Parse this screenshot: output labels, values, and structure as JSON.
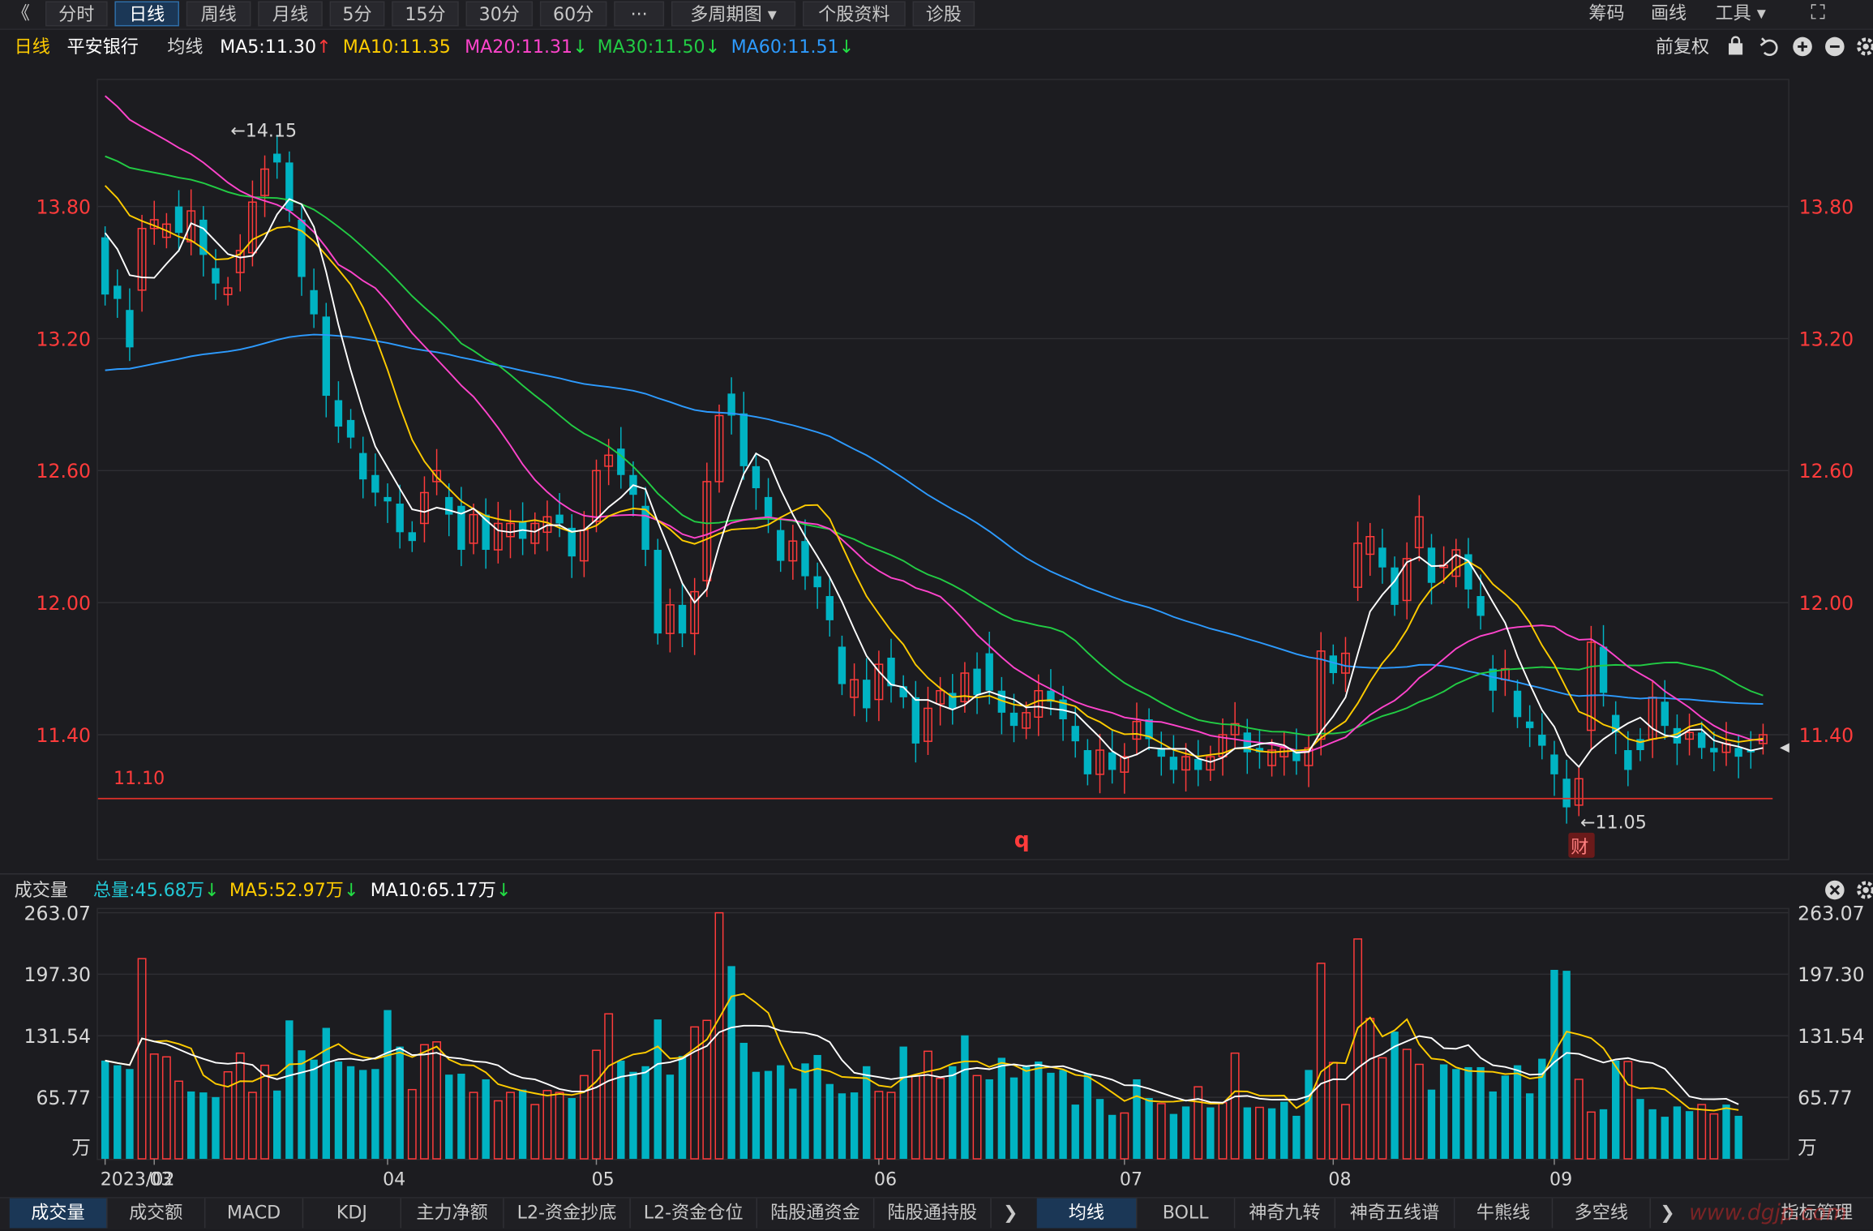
{
  "toolbar": {
    "back": "《",
    "tabs": [
      "分时",
      "日线",
      "周线",
      "月线",
      "5分",
      "15分",
      "30分",
      "60分",
      "···",
      "多周期图 ▾",
      "个股资料",
      "诊股"
    ],
    "active_tab": "日线",
    "right": [
      "筹码",
      "画线",
      "工具 ▾"
    ],
    "fullscreen_icon": "⛶"
  },
  "legend": {
    "period": "日线",
    "stock_name": "平安银行",
    "ma_label": "均线",
    "ma_items": [
      {
        "text": "MA5:11.30",
        "arrow": "↑",
        "color": "#ffffff",
        "arrow_color": "#ff3b3b"
      },
      {
        "text": "MA10:11.35",
        "arrow": "",
        "color": "#ffcc00",
        "arrow_color": ""
      },
      {
        "text": "MA20:11.31",
        "arrow": "↓",
        "color": "#ff44cc",
        "arrow_color": "#22dd44"
      },
      {
        "text": "MA30:11.50",
        "arrow": "↓",
        "color": "#22cc44",
        "arrow_color": "#22dd44"
      },
      {
        "text": "MA60:11.51",
        "arrow": "↓",
        "color": "#2d9bff",
        "arrow_color": "#22dd44"
      }
    ],
    "adjust": "前复权",
    "icons": [
      "lock-icon",
      "undo-icon",
      "plus-icon",
      "minus-icon",
      "gear-icon"
    ]
  },
  "colors": {
    "up": "#ff3b3b",
    "down": "#00b3c3",
    "ma5": "#ffffff",
    "ma10": "#ffcc00",
    "ma20": "#ff44cc",
    "ma30": "#22cc44",
    "ma60": "#2d9bff",
    "grid": "#2e2e33",
    "support": "#e0302a"
  },
  "volume_legend": {
    "title": "成交量",
    "total": "总量:45.68万",
    "total_arrow": "↓",
    "ma5": "MA5:52.97万",
    "ma5_arrow": "↓",
    "ma10": "MA10:65.17万",
    "ma10_arrow": "↓"
  },
  "chart_data": {
    "type": "candlestick",
    "price_axis": {
      "ticks": [
        "13.80",
        "13.20",
        "12.60",
        "12.00",
        "11.40"
      ],
      "min": 10.83,
      "max": 14.38
    },
    "volume_axis": {
      "ticks": [
        "263.07",
        "197.30",
        "131.54",
        "65.77"
      ],
      "unit": "万",
      "max": 263.07
    },
    "x_axis_labels": [
      "2023/02",
      "03",
      "04",
      "05",
      "06",
      "07",
      "08",
      "09"
    ],
    "annotations": {
      "high": "←14.15",
      "low": "←11.05",
      "support_level": "11.10",
      "marker_q": "q",
      "marker_cai": "财"
    },
    "support_price": 11.11,
    "candles": [
      [
        13.66,
        13.4
      ],
      [
        13.44,
        13.38
      ],
      [
        13.33,
        13.16
      ],
      [
        13.42,
        13.7
      ],
      [
        13.7,
        13.74
      ],
      [
        13.66,
        13.72
      ],
      [
        13.8,
        13.68
      ],
      [
        13.64,
        13.78
      ],
      [
        13.74,
        13.58
      ],
      [
        13.52,
        13.45
      ],
      [
        13.4,
        13.43
      ],
      [
        13.5,
        13.6
      ],
      [
        13.59,
        13.82
      ],
      [
        13.85,
        13.97
      ],
      [
        14.04,
        14.0
      ],
      [
        14.0,
        13.78
      ],
      [
        13.74,
        13.48
      ],
      [
        13.42,
        13.31
      ],
      [
        13.3,
        12.94
      ],
      [
        12.92,
        12.8
      ],
      [
        12.83,
        12.75
      ],
      [
        12.68,
        12.56
      ],
      [
        12.58,
        12.5
      ],
      [
        12.48,
        12.46
      ],
      [
        12.45,
        12.32
      ],
      [
        12.32,
        12.28
      ],
      [
        12.36,
        12.5
      ],
      [
        12.55,
        12.6
      ],
      [
        12.48,
        12.4
      ],
      [
        12.44,
        12.24
      ],
      [
        12.27,
        12.4
      ],
      [
        12.4,
        12.24
      ],
      [
        12.24,
        12.36
      ],
      [
        12.3,
        12.36
      ],
      [
        12.37,
        12.29
      ],
      [
        12.27,
        12.36
      ],
      [
        12.32,
        12.39
      ],
      [
        12.4,
        12.36
      ],
      [
        12.34,
        12.21
      ],
      [
        12.19,
        12.33
      ],
      [
        12.37,
        12.6
      ],
      [
        12.62,
        12.67
      ],
      [
        12.7,
        12.58
      ],
      [
        12.58,
        12.49
      ],
      [
        12.44,
        12.24
      ],
      [
        12.24,
        11.86
      ],
      [
        11.86,
        11.99
      ],
      [
        11.99,
        11.86
      ],
      [
        11.86,
        12.05
      ],
      [
        12.1,
        12.55
      ],
      [
        12.55,
        12.85
      ],
      [
        12.95,
        12.85
      ],
      [
        12.86,
        12.62
      ],
      [
        12.62,
        12.52
      ],
      [
        12.48,
        12.39
      ],
      [
        12.33,
        12.19
      ],
      [
        12.19,
        12.28
      ],
      [
        12.28,
        12.12
      ],
      [
        12.12,
        12.07
      ],
      [
        12.03,
        11.92
      ],
      [
        11.8,
        11.63
      ],
      [
        11.57,
        11.65
      ],
      [
        11.65,
        11.52
      ],
      [
        11.56,
        11.72
      ],
      [
        11.75,
        11.62
      ],
      [
        11.62,
        11.57
      ],
      [
        11.57,
        11.36
      ],
      [
        11.37,
        11.52
      ],
      [
        11.54,
        11.6
      ],
      [
        11.59,
        11.52
      ],
      [
        11.55,
        11.68
      ],
      [
        11.7,
        11.58
      ],
      [
        11.77,
        11.6
      ],
      [
        11.6,
        11.5
      ],
      [
        11.5,
        11.44
      ],
      [
        11.43,
        11.5
      ],
      [
        11.48,
        11.6
      ],
      [
        11.6,
        11.55
      ],
      [
        11.56,
        11.47
      ],
      [
        11.44,
        11.37
      ],
      [
        11.33,
        11.22
      ],
      [
        11.22,
        11.33
      ],
      [
        11.32,
        11.24
      ],
      [
        11.23,
        11.3
      ],
      [
        11.38,
        11.46
      ],
      [
        11.47,
        11.38
      ],
      [
        11.34,
        11.3
      ],
      [
        11.3,
        11.24
      ],
      [
        11.24,
        11.3
      ],
      [
        11.29,
        11.24
      ],
      [
        11.24,
        11.3
      ],
      [
        11.3,
        11.4
      ],
      [
        11.4,
        11.45
      ],
      [
        11.41,
        11.32
      ],
      [
        11.34,
        11.32
      ],
      [
        11.26,
        11.33
      ],
      [
        11.3,
        11.34
      ],
      [
        11.33,
        11.28
      ],
      [
        11.26,
        11.34
      ],
      [
        11.38,
        11.78
      ],
      [
        11.76,
        11.68
      ],
      [
        11.68,
        11.77
      ],
      [
        12.07,
        12.27
      ],
      [
        12.22,
        12.3
      ],
      [
        12.25,
        12.16
      ],
      [
        12.16,
        11.99
      ],
      [
        12.01,
        12.2
      ],
      [
        12.25,
        12.39
      ],
      [
        12.25,
        12.09
      ],
      [
        12.16,
        12.17
      ],
      [
        12.12,
        12.24
      ],
      [
        12.22,
        12.06
      ],
      [
        12.03,
        11.94
      ],
      [
        11.7,
        11.6
      ],
      [
        11.65,
        11.7
      ],
      [
        11.6,
        11.48
      ],
      [
        11.46,
        11.43
      ],
      [
        11.4,
        11.35
      ],
      [
        11.31,
        11.22
      ],
      [
        11.2,
        11.07
      ],
      [
        11.08,
        11.2
      ],
      [
        11.42,
        11.82
      ],
      [
        11.8,
        11.59
      ],
      [
        11.49,
        11.41
      ],
      [
        11.33,
        11.24
      ],
      [
        11.38,
        11.33
      ],
      [
        11.38,
        11.57
      ],
      [
        11.55,
        11.44
      ],
      [
        11.43,
        11.36
      ],
      [
        11.38,
        11.41
      ],
      [
        11.41,
        11.34
      ],
      [
        11.34,
        11.32
      ],
      [
        11.32,
        11.36
      ],
      [
        11.34,
        11.3
      ],
      [
        11.33,
        11.32
      ],
      [
        11.36,
        11.4
      ]
    ],
    "volumes_estimated": [
      [
        105,
        "d"
      ],
      [
        100,
        "d"
      ],
      [
        96,
        "d"
      ],
      [
        214,
        "u"
      ],
      [
        112,
        "u"
      ],
      [
        109,
        "u"
      ],
      [
        83,
        "u"
      ],
      [
        72,
        "d"
      ],
      [
        71,
        "d"
      ],
      [
        66,
        "d"
      ],
      [
        93,
        "u"
      ],
      [
        113,
        "u"
      ],
      [
        71,
        "u"
      ],
      [
        100,
        "u"
      ],
      [
        73,
        "d"
      ],
      [
        148,
        "d"
      ],
      [
        116,
        "d"
      ],
      [
        106,
        "d"
      ],
      [
        140,
        "d"
      ],
      [
        104,
        "d"
      ],
      [
        99,
        "d"
      ],
      [
        95,
        "d"
      ],
      [
        96,
        "d"
      ],
      [
        159,
        "d"
      ],
      [
        120,
        "d"
      ],
      [
        74,
        "u"
      ],
      [
        122,
        "u"
      ],
      [
        125,
        "u"
      ],
      [
        90,
        "d"
      ],
      [
        91,
        "d"
      ],
      [
        71,
        "u"
      ],
      [
        85,
        "d"
      ],
      [
        62,
        "u"
      ],
      [
        71,
        "u"
      ],
      [
        74,
        "d"
      ],
      [
        58,
        "u"
      ],
      [
        73,
        "u"
      ],
      [
        71,
        "u"
      ],
      [
        65,
        "d"
      ],
      [
        89,
        "u"
      ],
      [
        116,
        "u"
      ],
      [
        155,
        "u"
      ],
      [
        105,
        "d"
      ],
      [
        93,
        "d"
      ],
      [
        99,
        "d"
      ],
      [
        149,
        "d"
      ],
      [
        90,
        "d"
      ],
      [
        110,
        "d"
      ],
      [
        141,
        "u"
      ],
      [
        148,
        "u"
      ],
      [
        263,
        "u"
      ],
      [
        206,
        "d"
      ],
      [
        124,
        "d"
      ],
      [
        93,
        "d"
      ],
      [
        94,
        "d"
      ],
      [
        100,
        "d"
      ],
      [
        75,
        "d"
      ],
      [
        102,
        "d"
      ],
      [
        111,
        "d"
      ],
      [
        80,
        "d"
      ],
      [
        70,
        "d"
      ],
      [
        71,
        "d"
      ],
      [
        99,
        "d"
      ],
      [
        72,
        "u"
      ],
      [
        71,
        "u"
      ],
      [
        120,
        "d"
      ],
      [
        89,
        "u"
      ],
      [
        115,
        "u"
      ],
      [
        86,
        "u"
      ],
      [
        99,
        "d"
      ],
      [
        132,
        "d"
      ],
      [
        89,
        "u"
      ],
      [
        85,
        "d"
      ],
      [
        108,
        "d"
      ],
      [
        87,
        "d"
      ],
      [
        100,
        "d"
      ],
      [
        104,
        "d"
      ],
      [
        92,
        "d"
      ],
      [
        95,
        "d"
      ],
      [
        58,
        "d"
      ],
      [
        91,
        "d"
      ],
      [
        64,
        "d"
      ],
      [
        47,
        "d"
      ],
      [
        49,
        "u"
      ],
      [
        85,
        "d"
      ],
      [
        65,
        "d"
      ],
      [
        59,
        "u"
      ],
      [
        48,
        "d"
      ],
      [
        56,
        "d"
      ],
      [
        77,
        "u"
      ],
      [
        55,
        "d"
      ],
      [
        60,
        "u"
      ],
      [
        113,
        "u"
      ],
      [
        55,
        "d"
      ],
      [
        55,
        "u"
      ],
      [
        54,
        "d"
      ],
      [
        61,
        "d"
      ],
      [
        46,
        "d"
      ],
      [
        95,
        "d"
      ],
      [
        209,
        "u"
      ],
      [
        103,
        "u"
      ],
      [
        58,
        "u"
      ],
      [
        235,
        "u"
      ],
      [
        150,
        "u"
      ],
      [
        108,
        "u"
      ],
      [
        136,
        "d"
      ],
      [
        117,
        "u"
      ],
      [
        101,
        "u"
      ],
      [
        74,
        "d"
      ],
      [
        101,
        "d"
      ],
      [
        96,
        "d"
      ],
      [
        98,
        "d"
      ],
      [
        98,
        "d"
      ],
      [
        72,
        "d"
      ],
      [
        89,
        "d"
      ],
      [
        100,
        "d"
      ],
      [
        70,
        "d"
      ],
      [
        107,
        "d"
      ],
      [
        202,
        "d"
      ],
      [
        201,
        "d"
      ],
      [
        85,
        "u"
      ],
      [
        50,
        "u"
      ],
      [
        53,
        "d"
      ],
      [
        105,
        "d"
      ],
      [
        104,
        "u"
      ],
      [
        64,
        "d"
      ],
      [
        53,
        "d"
      ],
      [
        45,
        "d"
      ],
      [
        56,
        "d"
      ],
      [
        51,
        "d"
      ],
      [
        58,
        "u"
      ],
      [
        48,
        "u"
      ],
      [
        58,
        "d"
      ],
      [
        46,
        "d"
      ]
    ]
  },
  "bottombar": {
    "left": [
      "成交量",
      "成交额",
      "MACD",
      "KDJ",
      "主力净额",
      "L2-资金抄底",
      "L2-资金仓位",
      "陆股通资金",
      "陆股通持股"
    ],
    "left_active": "成交量",
    "more": "❯",
    "right": [
      "均线",
      "BOLL",
      "神奇九转",
      "神奇五线谱",
      "牛熊线",
      "多空线"
    ],
    "right_active": "均线",
    "more_right": "❯",
    "manage": "指标管理",
    "watermark": "www.dgjp.com"
  }
}
